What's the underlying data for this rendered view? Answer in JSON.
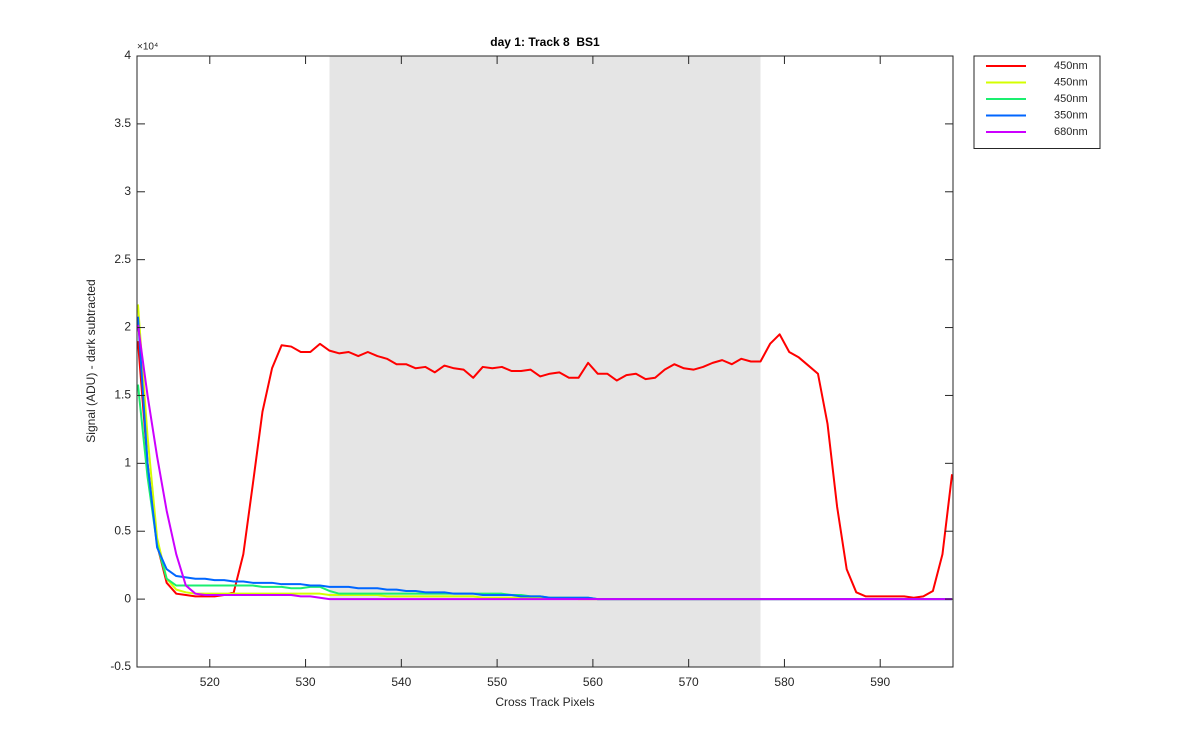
{
  "chart_data": {
    "type": "line",
    "title": "day 1: Track 8  BS1",
    "x_label": "Cross Track Pixels",
    "y_label": "Signal (ADU) - dark subtracted",
    "y_multiplier": "×10⁴",
    "x": [
      512.5,
      513.5,
      514.5,
      515.5,
      516.5,
      517.5,
      518.5,
      519.5,
      520.5,
      521.5,
      522.5,
      523.5,
      524.5,
      525.5,
      526.5,
      527.5,
      528.5,
      529.5,
      530.5,
      531.5,
      532.5,
      533.5,
      534.5,
      535.5,
      536.5,
      537.5,
      538.5,
      539.5,
      540.5,
      541.5,
      542.5,
      543.5,
      544.5,
      545.5,
      546.5,
      547.5,
      548.5,
      549.5,
      550.5,
      551.5,
      552.5,
      553.5,
      554.5,
      555.5,
      556.5,
      557.5,
      558.5,
      559.5,
      560.5,
      561.5,
      562.5,
      563.5,
      564.5,
      565.5,
      566.5,
      567.5,
      568.5,
      569.5,
      570.5,
      571.5,
      572.5,
      573.5,
      574.5,
      575.5,
      576.5,
      577.5,
      578.5,
      579.5,
      580.5,
      581.5,
      582.5,
      583.5,
      584.5,
      585.5,
      586.5,
      587.5,
      588.5,
      589.5,
      590.5,
      591.5,
      592.5,
      593.5,
      594.5,
      595.5,
      596.5,
      597.5
    ],
    "series": [
      {
        "name": "450nm",
        "color": "#ff0000",
        "values": [
          1.9,
          1.0,
          0.4,
          0.12,
          0.04,
          0.03,
          0.02,
          0.02,
          0.02,
          0.03,
          0.05,
          0.33,
          0.85,
          1.38,
          1.7,
          1.87,
          1.86,
          1.82,
          1.82,
          1.88,
          1.83,
          1.81,
          1.82,
          1.79,
          1.82,
          1.79,
          1.77,
          1.73,
          1.73,
          1.7,
          1.71,
          1.67,
          1.72,
          1.7,
          1.69,
          1.63,
          1.71,
          1.7,
          1.71,
          1.68,
          1.68,
          1.69,
          1.64,
          1.66,
          1.67,
          1.63,
          1.63,
          1.74,
          1.66,
          1.66,
          1.61,
          1.65,
          1.66,
          1.62,
          1.63,
          1.69,
          1.73,
          1.7,
          1.69,
          1.71,
          1.74,
          1.76,
          1.73,
          1.77,
          1.75,
          1.75,
          1.88,
          1.95,
          1.82,
          1.78,
          1.72,
          1.66,
          1.29,
          0.68,
          0.22,
          0.05,
          0.02,
          0.02,
          0.02,
          0.02,
          0.02,
          0.01,
          0.02,
          0.06,
          0.33,
          0.92
        ]
      },
      {
        "name": "450nm",
        "color": "#d4ff00",
        "values": [
          2.17,
          1.2,
          0.45,
          0.15,
          0.07,
          0.05,
          0.04,
          0.04,
          0.04,
          0.04,
          0.04,
          0.04,
          0.04,
          0.04,
          0.04,
          0.04,
          0.04,
          0.04,
          0.04,
          0.04,
          0.03,
          0.03,
          0.03,
          0.03,
          0.03,
          0.03,
          0.02,
          0.02,
          0.02,
          0.02,
          0.02,
          0.02,
          0.02,
          0.02,
          0.02,
          0.02,
          0.01,
          0.01,
          0.01,
          0.01,
          0.01,
          0.01,
          0.01,
          0.01,
          0.01,
          0.01,
          0,
          0,
          0,
          0,
          0,
          0,
          0,
          0,
          0,
          0,
          0,
          0,
          0,
          0,
          0,
          0,
          0,
          0,
          0,
          0,
          0,
          0,
          0,
          0,
          0,
          0,
          0,
          0,
          0,
          0,
          0,
          0,
          0,
          0,
          0,
          0,
          0,
          0,
          0,
          0
        ]
      },
      {
        "name": "450nm",
        "color": "#1aef6f",
        "values": [
          1.58,
          0.9,
          0.4,
          0.15,
          0.1,
          0.1,
          0.1,
          0.1,
          0.1,
          0.1,
          0.1,
          0.1,
          0.1,
          0.09,
          0.09,
          0.09,
          0.08,
          0.08,
          0.09,
          0.09,
          0.06,
          0.04,
          0.04,
          0.04,
          0.04,
          0.04,
          0.04,
          0.04,
          0.04,
          0.04,
          0.04,
          0.04,
          0.04,
          0.04,
          0.04,
          0.04,
          0.04,
          0.04,
          0.04,
          0.03,
          0.03,
          0.02,
          0.02,
          0.01,
          0.01,
          0.01,
          0.01,
          0.01,
          0,
          0,
          0,
          0,
          0,
          0,
          0,
          0,
          0,
          0,
          0,
          0,
          0,
          0,
          0,
          0,
          0,
          0,
          0,
          0,
          0,
          0,
          0,
          0,
          0,
          0,
          0,
          0,
          0,
          0,
          0,
          0,
          0,
          0,
          0,
          0,
          0,
          0
        ]
      },
      {
        "name": "350nm",
        "color": "#0066ff",
        "values": [
          2.08,
          1.0,
          0.38,
          0.22,
          0.17,
          0.16,
          0.15,
          0.15,
          0.14,
          0.14,
          0.13,
          0.13,
          0.12,
          0.12,
          0.12,
          0.11,
          0.11,
          0.11,
          0.1,
          0.1,
          0.09,
          0.09,
          0.09,
          0.08,
          0.08,
          0.08,
          0.07,
          0.07,
          0.06,
          0.06,
          0.05,
          0.05,
          0.05,
          0.04,
          0.04,
          0.04,
          0.03,
          0.03,
          0.03,
          0.03,
          0.02,
          0.02,
          0.02,
          0.01,
          0.01,
          0.01,
          0.01,
          0.01,
          0,
          0,
          0,
          0,
          0,
          0,
          0,
          0,
          0,
          0,
          0,
          0,
          0,
          0,
          0,
          0,
          0,
          0,
          0,
          0,
          0,
          0,
          0,
          0,
          0,
          0,
          0,
          0,
          0,
          0,
          0,
          0,
          0,
          0,
          0,
          0,
          0,
          0
        ]
      },
      {
        "name": "680nm",
        "color": "#cc00ff",
        "values": [
          2.02,
          1.5,
          1.05,
          0.65,
          0.33,
          0.1,
          0.04,
          0.03,
          0.03,
          0.03,
          0.03,
          0.03,
          0.03,
          0.03,
          0.03,
          0.03,
          0.03,
          0.02,
          0.02,
          0.01,
          0,
          0,
          0,
          0,
          0,
          0,
          0,
          0,
          0,
          0,
          0,
          0,
          0,
          0,
          0,
          0,
          0,
          0,
          0,
          0,
          0,
          0,
          0,
          0,
          0,
          0,
          0,
          0,
          0,
          0,
          0,
          0,
          0,
          0,
          0,
          0,
          0,
          0,
          0,
          0,
          0,
          0,
          0,
          0,
          0,
          0,
          0,
          0,
          0,
          0,
          0,
          0,
          0,
          0,
          0,
          0,
          0,
          0,
          0,
          0,
          0,
          0,
          0,
          0,
          0,
          0
        ]
      }
    ],
    "shaded_region": {
      "x": [
        532.5,
        577.5
      ],
      "color": "#e5e5e5"
    },
    "xlim": [
      512.4,
      597.6
    ],
    "xticks": [
      520,
      530,
      540,
      550,
      560,
      570,
      580,
      590
    ],
    "ylim": [
      -0.5,
      4
    ],
    "yticks": [
      -0.5,
      0,
      0.5,
      1,
      1.5,
      2,
      2.5,
      3,
      3.5,
      4
    ],
    "legend": "outside-top-right"
  }
}
